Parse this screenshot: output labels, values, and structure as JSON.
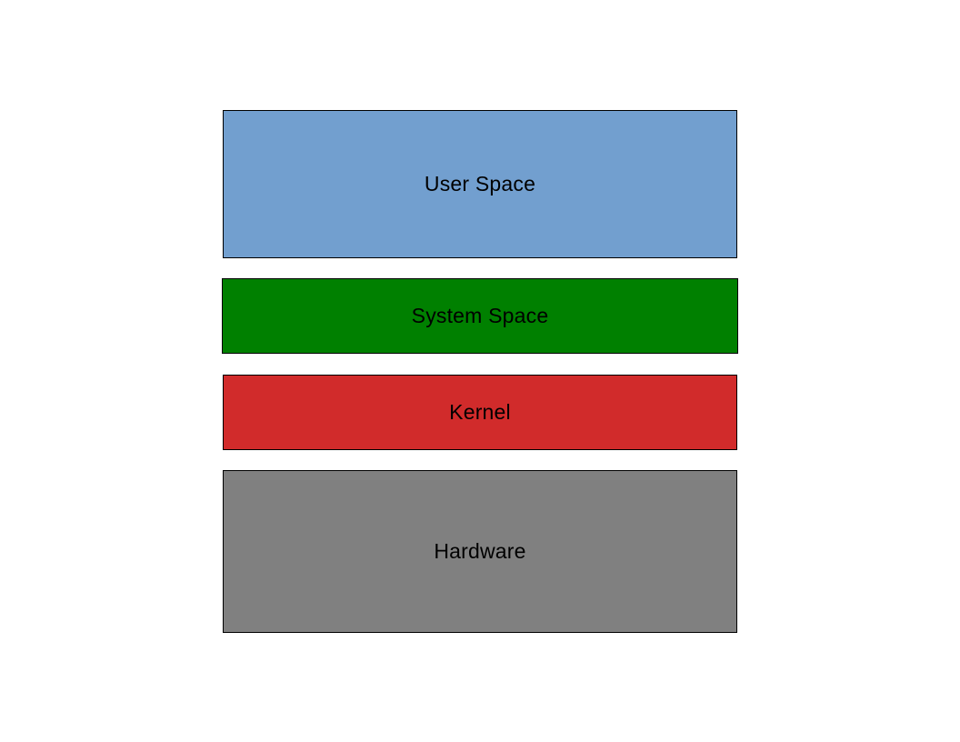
{
  "diagram": {
    "layers": [
      {
        "id": "user",
        "label": "User Space",
        "color": "#729fcf"
      },
      {
        "id": "system",
        "label": "System Space",
        "color": "#008000"
      },
      {
        "id": "kernel",
        "label": "Kernel",
        "color": "#d12b2b"
      },
      {
        "id": "hardware",
        "label": "Hardware",
        "color": "#808080"
      }
    ]
  }
}
